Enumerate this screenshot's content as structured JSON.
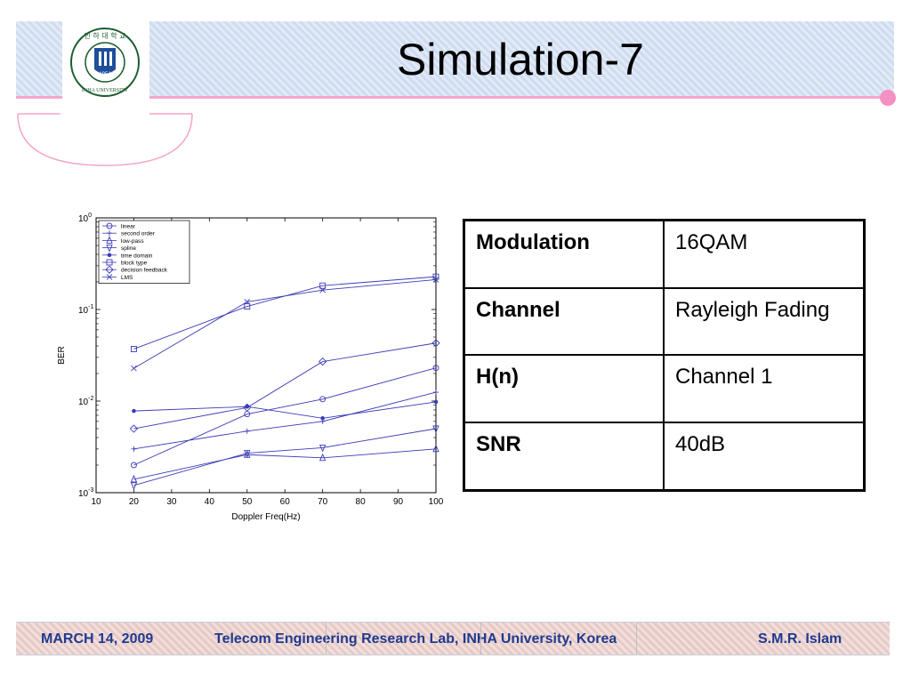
{
  "slide": {
    "title": "Simulation-7"
  },
  "logo": {
    "top_text": "인 하 대 학 교",
    "bottom_text": "INHA UNIVERSITY",
    "year": "1954"
  },
  "table": {
    "rows": [
      {
        "key": "Modulation",
        "value": "16QAM"
      },
      {
        "key": "Channel",
        "value": "Rayleigh Fading"
      },
      {
        "key": "H(n)",
        "value": "Channel 1"
      },
      {
        "key": "SNR",
        "value": "40dB"
      }
    ]
  },
  "footer": {
    "date": "MARCH 14, 2009",
    "lab": "Telecom Engineering Research Lab, INHA University, Korea",
    "author": "S.M.R. Islam"
  },
  "colors": {
    "series": "#3b3bb8",
    "accent_pink": "#f4a6cc",
    "footer_text": "#1f3a8f"
  },
  "chart_data": {
    "type": "line",
    "xlabel": "Doppler Freq(Hz)",
    "ylabel": "BER",
    "x_ticks": [
      10,
      20,
      30,
      40,
      50,
      60,
      70,
      80,
      90,
      100
    ],
    "xlim": [
      10,
      100
    ],
    "ylim": [
      0.001,
      1
    ],
    "y_scale": "log",
    "y_ticks": [
      {
        "value": 1,
        "base": "10",
        "exp": "0"
      },
      {
        "value": 0.1,
        "base": "10",
        "exp": "-1"
      },
      {
        "value": 0.01,
        "base": "10",
        "exp": "-2"
      },
      {
        "value": 0.001,
        "base": "10",
        "exp": "-3"
      }
    ],
    "legend_position": "top-left",
    "x": [
      20,
      50,
      70,
      100
    ],
    "series": [
      {
        "name": "linear",
        "marker": "circle",
        "values": [
          0.002,
          0.0072,
          0.0105,
          0.023
        ]
      },
      {
        "name": "second order",
        "marker": "plus",
        "values": [
          0.003,
          0.0047,
          0.006,
          0.0125
        ]
      },
      {
        "name": "low-pass",
        "marker": "triangle-up",
        "values": [
          0.0014,
          0.0026,
          0.0024,
          0.003
        ]
      },
      {
        "name": "spline",
        "marker": "triangle-down",
        "values": [
          0.0012,
          0.0027,
          0.0031,
          0.005
        ]
      },
      {
        "name": "time domain",
        "marker": "dot",
        "values": [
          0.0078,
          0.0087,
          0.0065,
          0.0098
        ]
      },
      {
        "name": "block type",
        "marker": "square",
        "values": [
          0.037,
          0.108,
          0.182,
          0.228
        ]
      },
      {
        "name": "decision feedback",
        "marker": "diamond",
        "values": [
          0.005,
          0.0085,
          0.027,
          0.043
        ]
      },
      {
        "name": "LMS",
        "marker": "x",
        "values": [
          0.0228,
          0.121,
          0.163,
          0.212
        ]
      }
    ]
  }
}
